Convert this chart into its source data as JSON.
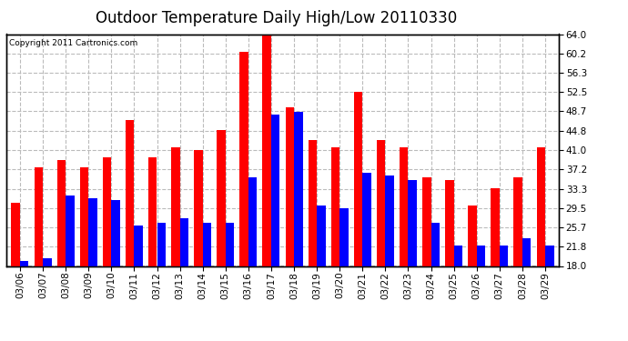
{
  "title": "Outdoor Temperature Daily High/Low 20110330",
  "copyright": "Copyright 2011 Cartronics.com",
  "dates": [
    "03/06",
    "03/07",
    "03/08",
    "03/09",
    "03/10",
    "03/11",
    "03/12",
    "03/13",
    "03/14",
    "03/15",
    "03/16",
    "03/17",
    "03/18",
    "03/19",
    "03/20",
    "03/21",
    "03/22",
    "03/23",
    "03/24",
    "03/25",
    "03/26",
    "03/27",
    "03/28",
    "03/29"
  ],
  "highs": [
    30.5,
    37.5,
    39.0,
    37.5,
    39.5,
    47.0,
    39.5,
    41.5,
    41.0,
    45.0,
    60.5,
    64.0,
    49.5,
    43.0,
    41.5,
    52.5,
    43.0,
    41.5,
    35.5,
    35.0,
    30.0,
    33.5,
    35.5,
    41.5
  ],
  "lows": [
    19.0,
    19.5,
    32.0,
    31.5,
    31.0,
    26.0,
    26.5,
    27.5,
    26.5,
    26.5,
    35.5,
    48.0,
    48.5,
    30.0,
    29.5,
    36.5,
    36.0,
    35.0,
    26.5,
    22.0,
    22.0,
    22.0,
    23.5,
    22.0
  ],
  "high_color": "#ff0000",
  "low_color": "#0000ff",
  "background_color": "#ffffff",
  "yticks": [
    18.0,
    21.8,
    25.7,
    29.5,
    33.3,
    37.2,
    41.0,
    44.8,
    48.7,
    52.5,
    56.3,
    60.2,
    64.0
  ],
  "ymin": 18.0,
  "ymax": 64.0,
  "grid_color": "#bbbbbb",
  "title_fontsize": 12,
  "tick_fontsize": 7.5,
  "bar_width": 0.38
}
